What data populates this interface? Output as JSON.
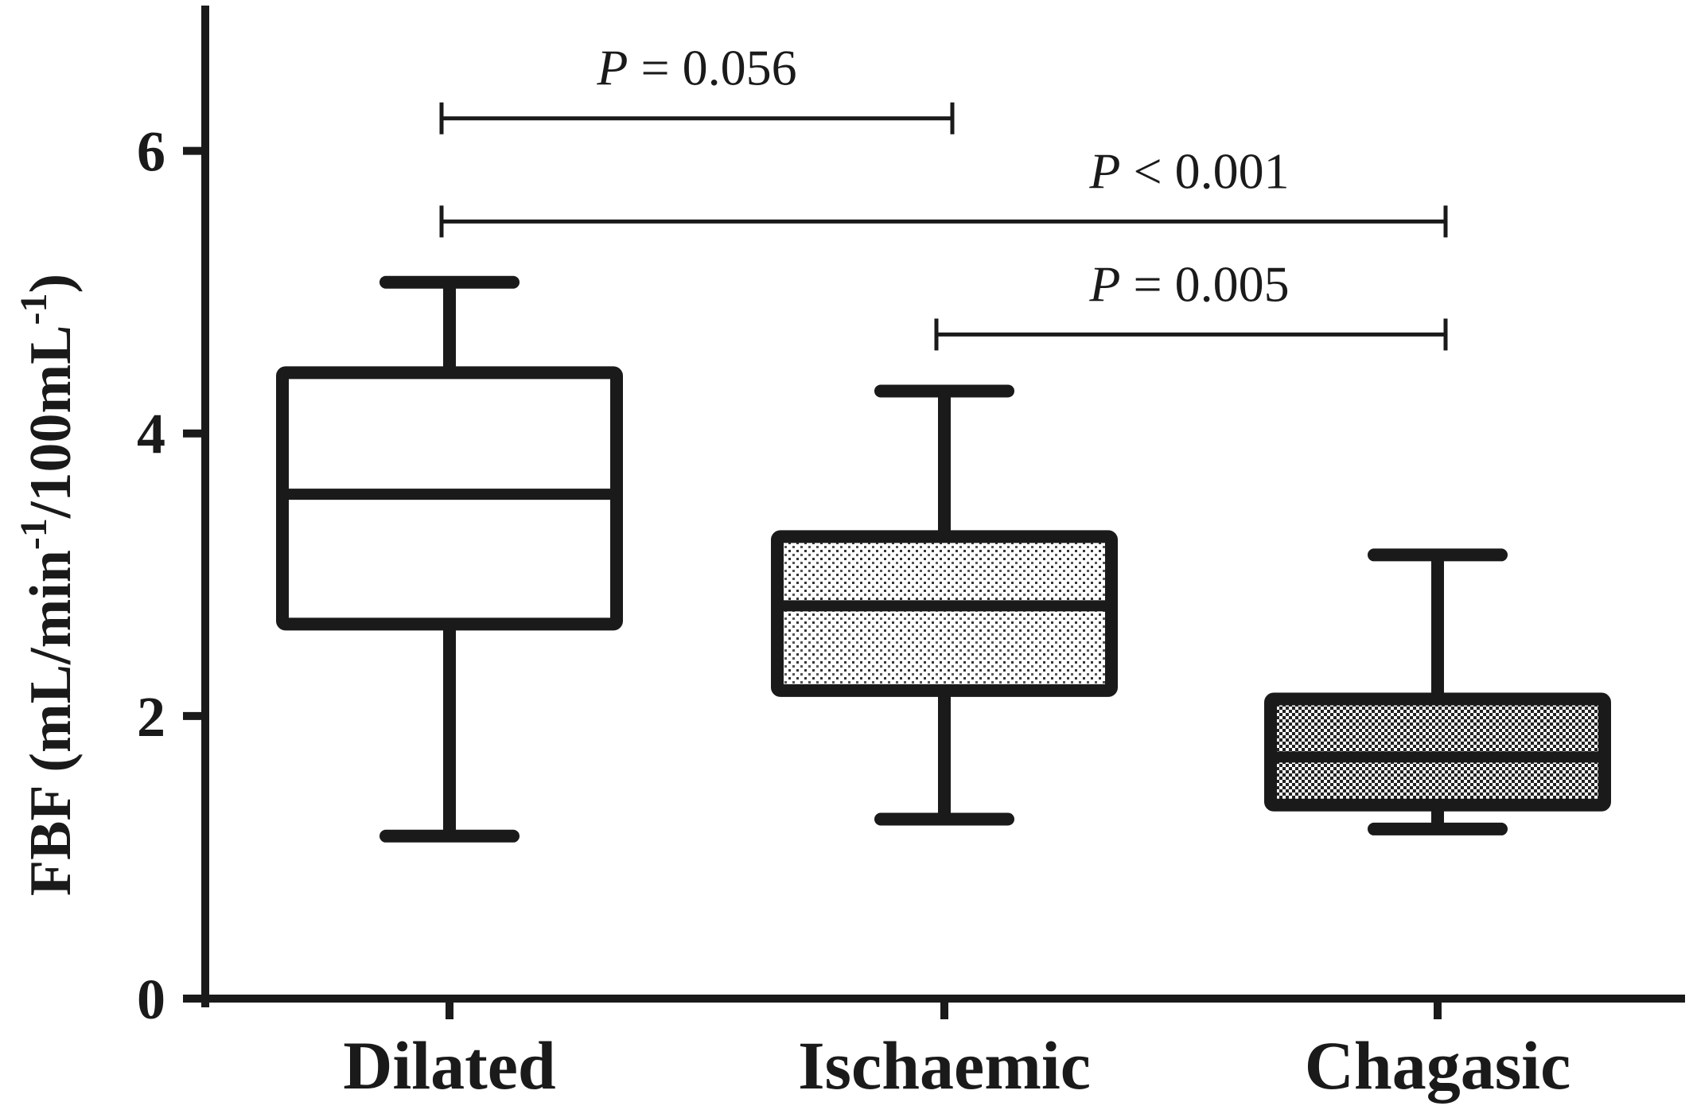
{
  "chart_data": {
    "type": "box",
    "ylabel": "FBF (mL/min-1/100mL-1)",
    "ylabel_parts": {
      "pre": "FBF (mL/min",
      "sup1": "-1",
      "mid": "/100mL",
      "sup2": "-1",
      "post": ")"
    },
    "ylim": [
      0,
      7
    ],
    "yticks": [
      0,
      2,
      4,
      6
    ],
    "grid": false,
    "categories": [
      "Dilated",
      "Ischaemic",
      "Chagasic"
    ],
    "boxes": [
      {
        "category": "Dilated",
        "min": 1.15,
        "q1": 2.65,
        "median": 3.57,
        "q3": 4.43,
        "max": 5.07,
        "fill": "none"
      },
      {
        "category": "Ischaemic",
        "min": 1.27,
        "q1": 2.18,
        "median": 2.78,
        "q3": 3.27,
        "max": 4.3,
        "fill": "light-dots"
      },
      {
        "category": "Chagasic",
        "min": 1.2,
        "q1": 1.37,
        "median": 1.71,
        "q3": 2.12,
        "max": 3.14,
        "fill": "dense-dots"
      }
    ],
    "annotations": [
      {
        "from": 0,
        "to": 1,
        "y": 6.23,
        "label_p": "P",
        "label_rest": " = 0.056"
      },
      {
        "from": 0,
        "to": 2,
        "y": 5.5,
        "label_p": "P",
        "label_rest": " < 0.001"
      },
      {
        "from": 1,
        "to": 2,
        "y": 4.7,
        "label_p": "P",
        "label_rest": " = 0.005"
      }
    ],
    "colors": {
      "stroke": "#1a1a1a",
      "background": "#ffffff"
    }
  }
}
